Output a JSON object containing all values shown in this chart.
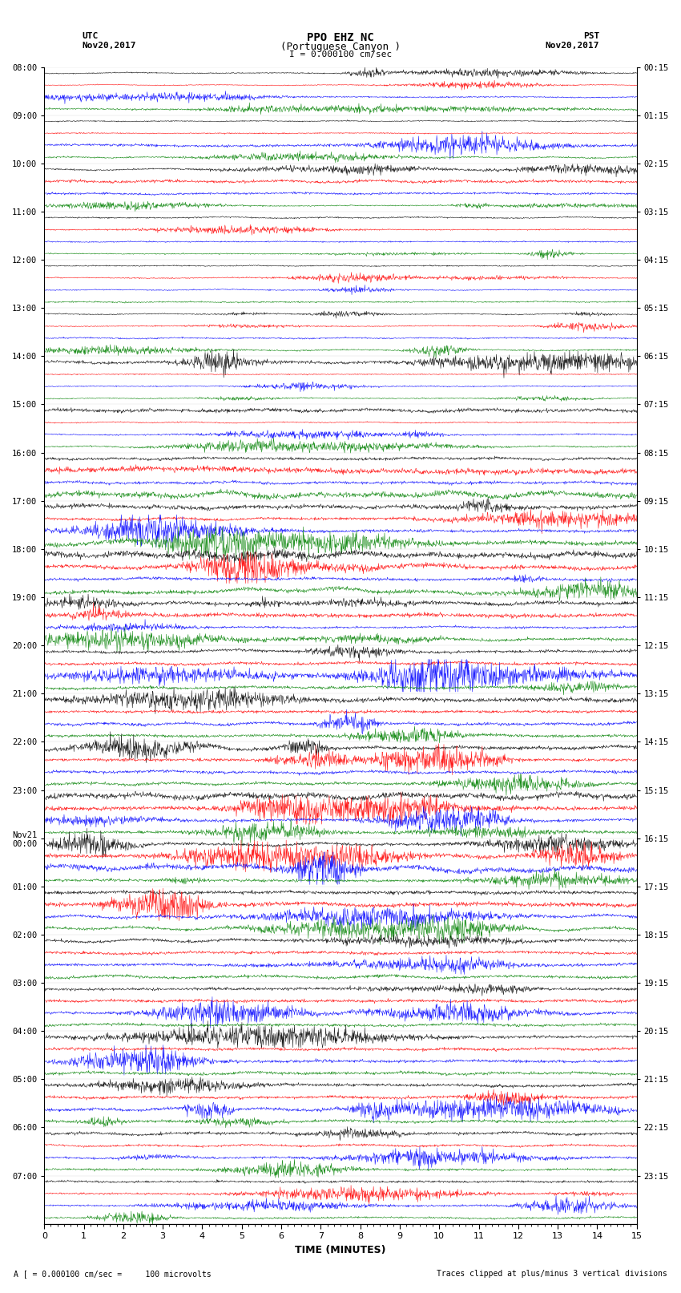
{
  "title_line1": "PPO EHZ NC",
  "title_line2": "(Portuguese Canyon )",
  "title_line3": "I = 0.000100 cm/sec",
  "left_header": "UTC\nNov20,2017",
  "right_header": "PST\nNov20,2017",
  "xlabel": "TIME (MINUTES)",
  "bottom_note_left": "A [ = 0.000100 cm/sec =     100 microvolts",
  "bottom_note_right": "Traces clipped at plus/minus 3 vertical divisions",
  "xmin": 0,
  "xmax": 15,
  "trace_colors": [
    "black",
    "red",
    "blue",
    "green"
  ],
  "utc_labels": [
    "08:00",
    "09:00",
    "10:00",
    "11:00",
    "12:00",
    "13:00",
    "14:00",
    "15:00",
    "16:00",
    "17:00",
    "18:00",
    "19:00",
    "20:00",
    "21:00",
    "22:00",
    "23:00",
    "Nov21\n00:00",
    "01:00",
    "02:00",
    "03:00",
    "04:00",
    "05:00",
    "06:00",
    "07:00"
  ],
  "pst_labels": [
    "00:15",
    "01:15",
    "02:15",
    "03:15",
    "04:15",
    "05:15",
    "06:15",
    "07:15",
    "08:15",
    "09:15",
    "10:15",
    "11:15",
    "12:15",
    "13:15",
    "14:15",
    "15:15",
    "16:15",
    "17:15",
    "18:15",
    "19:15",
    "20:15",
    "21:15",
    "22:15",
    "23:15"
  ],
  "n_hours": 24,
  "n_traces_per_hour": 4,
  "bg_color": "white",
  "trace_amplitude_base": 0.3,
  "seed": 42
}
